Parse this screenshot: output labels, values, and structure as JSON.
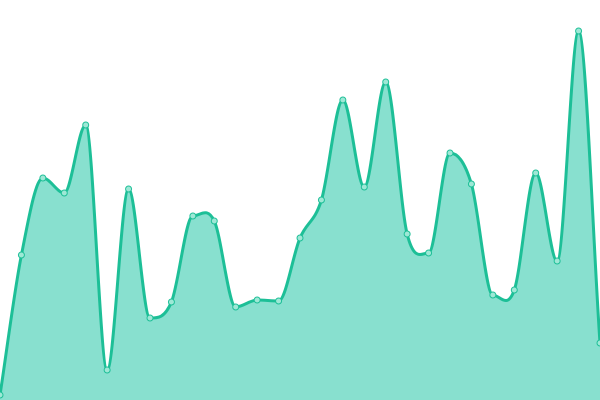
{
  "chart_data": {
    "type": "area",
    "title": "",
    "xlabel": "",
    "ylabel": "",
    "grid": false,
    "axes_visible": false,
    "x": [
      0,
      1,
      2,
      3,
      4,
      5,
      6,
      7,
      8,
      9,
      10,
      11,
      12,
      13,
      14,
      15,
      16,
      17,
      18,
      19,
      20,
      21,
      22,
      23,
      24,
      25,
      26,
      27,
      28
    ],
    "ylim": [
      0,
      400
    ],
    "series": [
      {
        "values": [
          5,
          145,
          222,
          207,
          275,
          30,
          211,
          82,
          98,
          184,
          179,
          93,
          100,
          99,
          162,
          200,
          300,
          213,
          318,
          166,
          147,
          247,
          216,
          105,
          110,
          227,
          139,
          369,
          57
        ]
      }
    ],
    "colors": {
      "line": "#1dbf97",
      "fill": "#88e0cf",
      "marker_fill": "#9ee8d6"
    }
  }
}
